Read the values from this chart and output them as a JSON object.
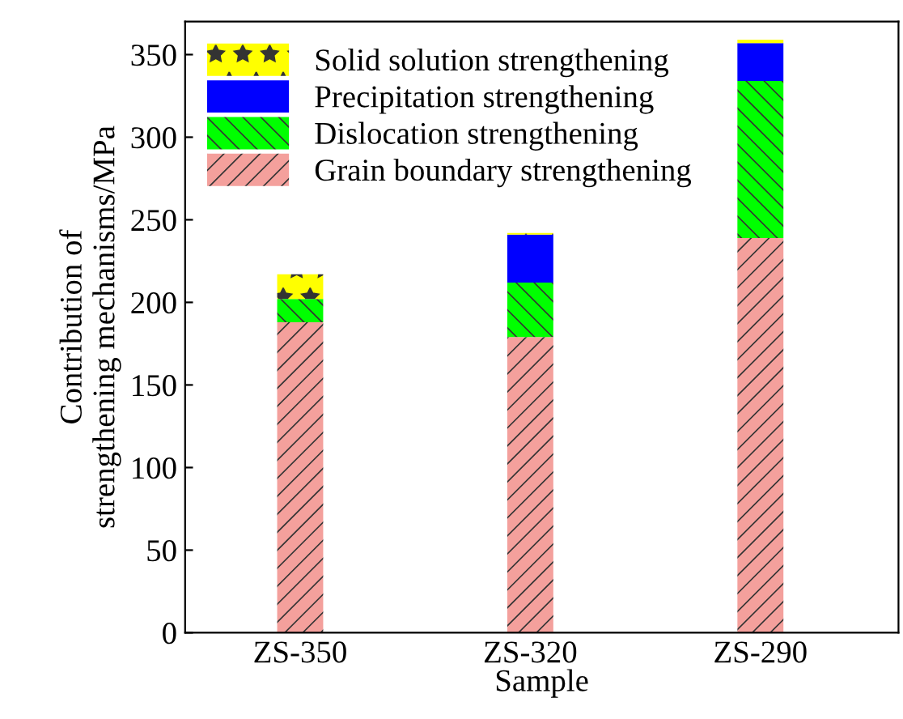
{
  "chart_data": {
    "type": "bar",
    "stacked": true,
    "xlabel": "Sample",
    "ylabel": "Contribution of\nstrengthening mechanisms/MPa",
    "categories": [
      "ZS-350",
      "ZS-320",
      "ZS-290"
    ],
    "series": [
      {
        "name": "Grain boundary strengthening",
        "color": "#f4a09c",
        "values": [
          188,
          179,
          239
        ]
      },
      {
        "name": "Dislocation strengthening",
        "color": "#00ff00",
        "values": [
          14,
          33,
          95
        ]
      },
      {
        "name": "Precipitation strengthening",
        "color": "#0000ff",
        "values": [
          0,
          29,
          23
        ]
      },
      {
        "name": "Solid solution strengthening",
        "color": "#ffff00",
        "values": [
          15,
          1,
          2
        ]
      }
    ],
    "ylim": [
      0,
      370
    ],
    "yticks": [
      0,
      50,
      100,
      150,
      200,
      250,
      300,
      350
    ],
    "legend": "top left",
    "grid": false
  }
}
